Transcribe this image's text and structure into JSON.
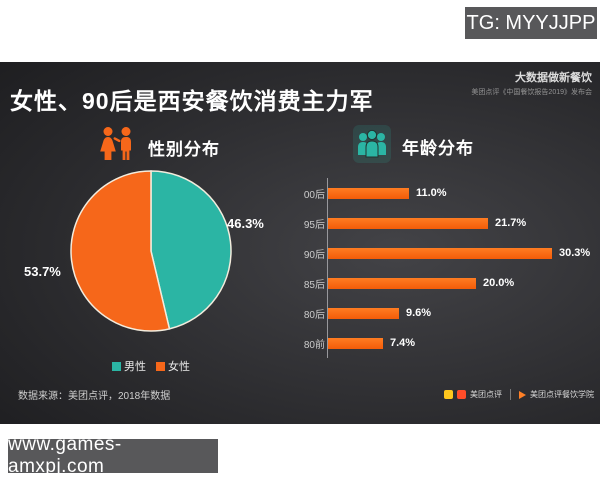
{
  "watermarks": {
    "top_badge": "TG: MYYJJPP",
    "bottom_badge": "www.games-amxpj.com"
  },
  "slide": {
    "title": "女性、90后是西安餐饮消费主力军",
    "corner_tagline": "大数据做新餐饮",
    "corner_subtitle": "美团点评《中国餐饮报告2019》发布会",
    "source_note": "数据来源：美团点评，2018年数据",
    "footer_brand_left": "美团点评",
    "footer_brand_right": "美团点评餐饮学院"
  },
  "icons": {
    "gender": "man-woman-icon",
    "age": "people-group-icon"
  },
  "chart_data": [
    {
      "type": "pie",
      "title": "性别分布",
      "labels": [
        "男性",
        "女性"
      ],
      "values": [
        46.3,
        53.7
      ],
      "data_labels": [
        "46.3%",
        "53.7%"
      ],
      "colors": [
        "#2BB5A4",
        "#F6671A"
      ],
      "legend_position": "bottom",
      "start_angle_deg": 0,
      "direction": "clockwise"
    },
    {
      "type": "bar",
      "title": "年龄分布",
      "orientation": "horizontal",
      "categories": [
        "00后",
        "95后",
        "90后",
        "85后",
        "80后",
        "80前"
      ],
      "values": [
        11.0,
        21.7,
        30.3,
        20.0,
        9.6,
        7.4
      ],
      "data_labels": [
        "11.0%",
        "21.7%",
        "30.3%",
        "20.0%",
        "9.6%",
        "7.4%"
      ],
      "bar_color": "#F6671A",
      "xlim": [
        0,
        33
      ],
      "grid": false,
      "value_labels_position": "right"
    }
  ],
  "colors": {
    "teal": "#2BB5A4",
    "orange": "#F6671A",
    "badge_bg": "#58585A",
    "slide_bg_dark": "#0e0e10",
    "slide_bg_light": "#434347",
    "pie_stroke": "#f3ecdd"
  }
}
